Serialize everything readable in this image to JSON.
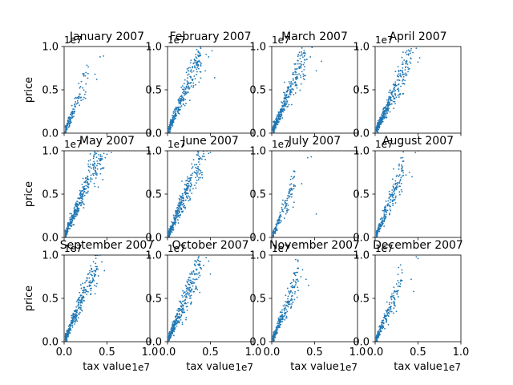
{
  "figure": {
    "background": "#ffffff"
  },
  "chart_data": {
    "type": "scatter",
    "layout": "3x4 grid of subplots",
    "shared_axes": true,
    "xlabel": "tax value",
    "ylabel": "price",
    "x_offset_text": "1e7",
    "y_offset_text": "1e7",
    "xlim": [
      0,
      1.0
    ],
    "ylim": [
      0,
      1.0
    ],
    "x_ticks": [
      "0.0",
      "0.5",
      "1.0"
    ],
    "y_ticks": [
      "0.0",
      "0.5",
      "1.0"
    ],
    "scale_factor": 10000000,
    "marker_color": "#1f77b4",
    "panels": [
      {
        "title": "January 2007",
        "n_points": 140,
        "slope": 2.4,
        "max_x": 0.27,
        "outliers": [
          [
            0.42,
            0.88
          ],
          [
            0.46,
            0.89
          ],
          [
            0.36,
            0.68
          ],
          [
            0.38,
            0.62
          ]
        ]
      },
      {
        "title": "February 2007",
        "n_points": 320,
        "slope": 2.35,
        "max_x": 0.38,
        "outliers": [
          [
            0.48,
            0.88
          ],
          [
            0.45,
            0.91
          ],
          [
            0.52,
            0.95
          ],
          [
            0.55,
            0.64
          ],
          [
            0.44,
            0.72
          ]
        ]
      },
      {
        "title": "March 2007",
        "n_points": 340,
        "slope": 2.35,
        "max_x": 0.38,
        "outliers": [
          [
            0.47,
            0.99
          ],
          [
            0.45,
            0.88
          ],
          [
            0.41,
            0.85
          ],
          [
            0.52,
            0.72
          ],
          [
            0.58,
            0.83
          ]
        ]
      },
      {
        "title": "April 2007",
        "n_points": 360,
        "slope": 2.2,
        "max_x": 0.42,
        "outliers": [
          [
            0.48,
            0.98
          ],
          [
            0.44,
            0.93
          ],
          [
            0.52,
            0.87
          ],
          [
            0.5,
            0.82
          ]
        ]
      },
      {
        "title": "May 2007",
        "n_points": 380,
        "slope": 2.3,
        "max_x": 0.45,
        "outliers": [
          [
            0.52,
            1.0
          ],
          [
            0.5,
            0.96
          ],
          [
            0.48,
            0.92
          ],
          [
            0.55,
            0.98
          ]
        ]
      },
      {
        "title": "June 2007",
        "n_points": 380,
        "slope": 2.4,
        "max_x": 0.42,
        "outliers": [
          [
            0.46,
            1.0
          ],
          [
            0.5,
            0.98
          ],
          [
            0.48,
            0.97
          ],
          [
            0.44,
            0.9
          ]
        ]
      },
      {
        "title": "July 2007",
        "n_points": 150,
        "slope": 2.3,
        "max_x": 0.26,
        "outliers": [
          [
            0.42,
            0.92
          ],
          [
            0.46,
            0.93
          ],
          [
            0.35,
            0.62
          ],
          [
            0.52,
            0.27
          ]
        ]
      },
      {
        "title": "August 2007",
        "n_points": 220,
        "slope": 2.3,
        "max_x": 0.32,
        "outliers": [
          [
            0.43,
            0.7
          ],
          [
            0.4,
            0.75
          ],
          [
            0.47,
            0.98
          ],
          [
            0.5,
            1.0
          ],
          [
            0.36,
            0.72
          ]
        ]
      },
      {
        "title": "September 2007",
        "n_points": 320,
        "slope": 2.35,
        "max_x": 0.38,
        "outliers": [
          [
            0.42,
            1.0
          ],
          [
            0.44,
            0.92
          ],
          [
            0.47,
            0.82
          ],
          [
            0.4,
            0.76
          ]
        ]
      },
      {
        "title": "October 2007",
        "n_points": 340,
        "slope": 2.4,
        "max_x": 0.38,
        "outliers": [
          [
            0.45,
            0.97
          ],
          [
            0.48,
            0.93
          ],
          [
            0.42,
            0.88
          ],
          [
            0.5,
            0.78
          ]
        ]
      },
      {
        "title": "November 2007",
        "n_points": 260,
        "slope": 2.4,
        "max_x": 0.3,
        "outliers": [
          [
            0.36,
            0.83
          ],
          [
            0.4,
            0.72
          ],
          [
            0.34,
            0.75
          ],
          [
            0.43,
            0.65
          ]
        ]
      },
      {
        "title": "December 2007",
        "n_points": 200,
        "slope": 2.3,
        "max_x": 0.3,
        "outliers": [
          [
            0.48,
            0.98
          ],
          [
            0.5,
            0.96
          ],
          [
            0.42,
            0.72
          ],
          [
            0.45,
            0.58
          ]
        ]
      }
    ]
  }
}
